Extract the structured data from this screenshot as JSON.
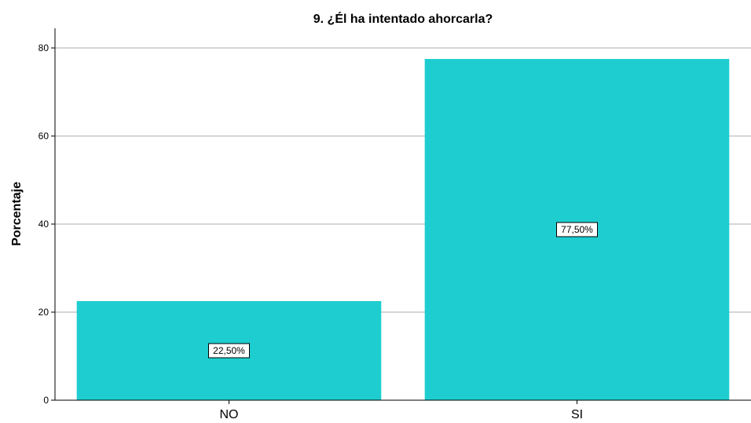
{
  "chart_data": {
    "type": "bar",
    "title": "9. ¿Él ha intentado ahorcarla?",
    "xlabel": "",
    "ylabel": "Porcentaje",
    "categories": [
      "NO",
      "SI"
    ],
    "values": [
      22.5,
      77.5
    ],
    "data_labels": [
      "22,50%",
      "77,50%"
    ],
    "ylim": [
      0,
      84
    ],
    "yticks": [
      0,
      20,
      40,
      60,
      80
    ],
    "grid": true,
    "bar_color": "#1ecdcf"
  }
}
